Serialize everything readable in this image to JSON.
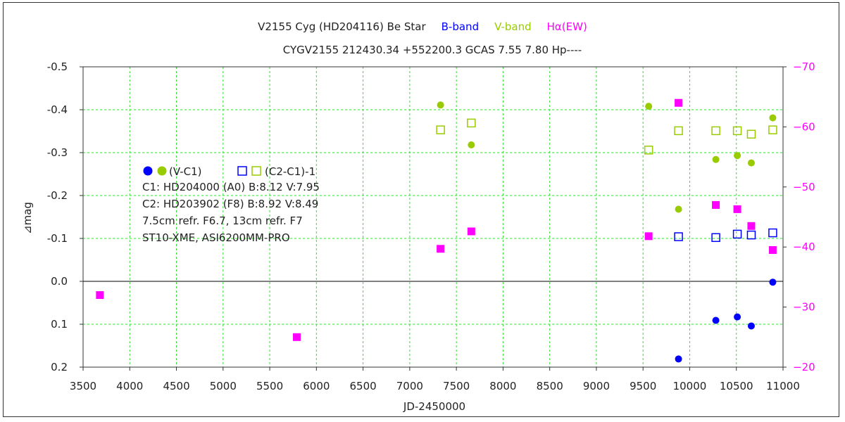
{
  "chart_data": {
    "type": "scatter",
    "title_parts": [
      {
        "text": "V2155 Cyg  (HD204116)   Be Star",
        "color": "#222222"
      },
      {
        "text": "B-band",
        "color": "#0000ff"
      },
      {
        "text": "V-band",
        "color": "#99cc00"
      },
      {
        "text": "Hα(EW)",
        "color": "#ff00ff"
      }
    ],
    "subtitle": "CYGV2155 212430.34 +552200.3 GCAS 7.55 7.80 Hp----",
    "xlabel": "JD-2450000",
    "ylabel": "⊿mag",
    "xlim": [
      3500,
      11000
    ],
    "ylim": [
      0.2,
      -0.5
    ],
    "y2lim": [
      -20,
      -70
    ],
    "y_inverted": true,
    "grid": true,
    "x_ticks": [
      3500,
      4000,
      4500,
      5000,
      5500,
      6000,
      6500,
      7000,
      7500,
      8000,
      8500,
      9000,
      9500,
      10000,
      10500,
      11000
    ],
    "y_ticks": [
      "-0.5",
      "-0.4",
      "-0.3",
      "-0.2",
      "-0.1",
      "0.0",
      "0.1",
      "0.2"
    ],
    "y2_ticks": [
      -70,
      -60,
      -50,
      -40,
      -30,
      -20
    ],
    "legend": {
      "row1_left": "(V-C1)",
      "row1_right": "(C2-C1)-1",
      "lines": [
        "C1: HD204000 (A0)  B:8.12  V:7.95",
        "C2: HD203902 (F8)  B:8.92  V:8.49",
        "7.5cm refr. F6.7, 13cm refr. F7",
        "ST10-XME,  ASI6200MM-PRO"
      ],
      "placement": "left-middle"
    },
    "series": [
      {
        "name": "B (V-C1)",
        "axis": "left",
        "marker": "filled-circle",
        "color": "#0000ff",
        "points": [
          [
            9880,
            0.181
          ],
          [
            10280,
            0.091
          ],
          [
            10510,
            0.083
          ],
          [
            10660,
            0.104
          ],
          [
            10890,
            0.002
          ]
        ]
      },
      {
        "name": "V (V-C1)",
        "axis": "left",
        "marker": "filled-circle",
        "color": "#99cc00",
        "points": [
          [
            7330,
            -0.411
          ],
          [
            7660,
            -0.318
          ],
          [
            9560,
            -0.408
          ],
          [
            9880,
            -0.168
          ],
          [
            10280,
            -0.284
          ],
          [
            10510,
            -0.293
          ],
          [
            10660,
            -0.276
          ],
          [
            10890,
            -0.381
          ]
        ]
      },
      {
        "name": "B (C2-C1)-1",
        "axis": "left",
        "marker": "open-square",
        "color": "#0000ff",
        "points": [
          [
            9880,
            -0.104
          ],
          [
            10280,
            -0.102
          ],
          [
            10510,
            -0.11
          ],
          [
            10660,
            -0.108
          ],
          [
            10890,
            -0.113
          ]
        ]
      },
      {
        "name": "V (C2-C1)-1",
        "axis": "left",
        "marker": "open-square",
        "color": "#99cc00",
        "points": [
          [
            7330,
            -0.353
          ],
          [
            7660,
            -0.369
          ],
          [
            9560,
            -0.306
          ],
          [
            9880,
            -0.351
          ],
          [
            10280,
            -0.351
          ],
          [
            10510,
            -0.351
          ],
          [
            10660,
            -0.343
          ],
          [
            10890,
            -0.353
          ]
        ]
      },
      {
        "name": "Hα(EW)",
        "axis": "right",
        "marker": "filled-square",
        "color": "#ff00ff",
        "points": [
          [
            3680,
            -32.0
          ],
          [
            5790,
            -25.0
          ],
          [
            7330,
            -39.7
          ],
          [
            7660,
            -42.6
          ],
          [
            9560,
            -41.8
          ],
          [
            9880,
            -64.0
          ],
          [
            10280,
            -47.0
          ],
          [
            10510,
            -46.3
          ],
          [
            10660,
            -43.5
          ],
          [
            10890,
            -39.5
          ]
        ]
      }
    ]
  }
}
